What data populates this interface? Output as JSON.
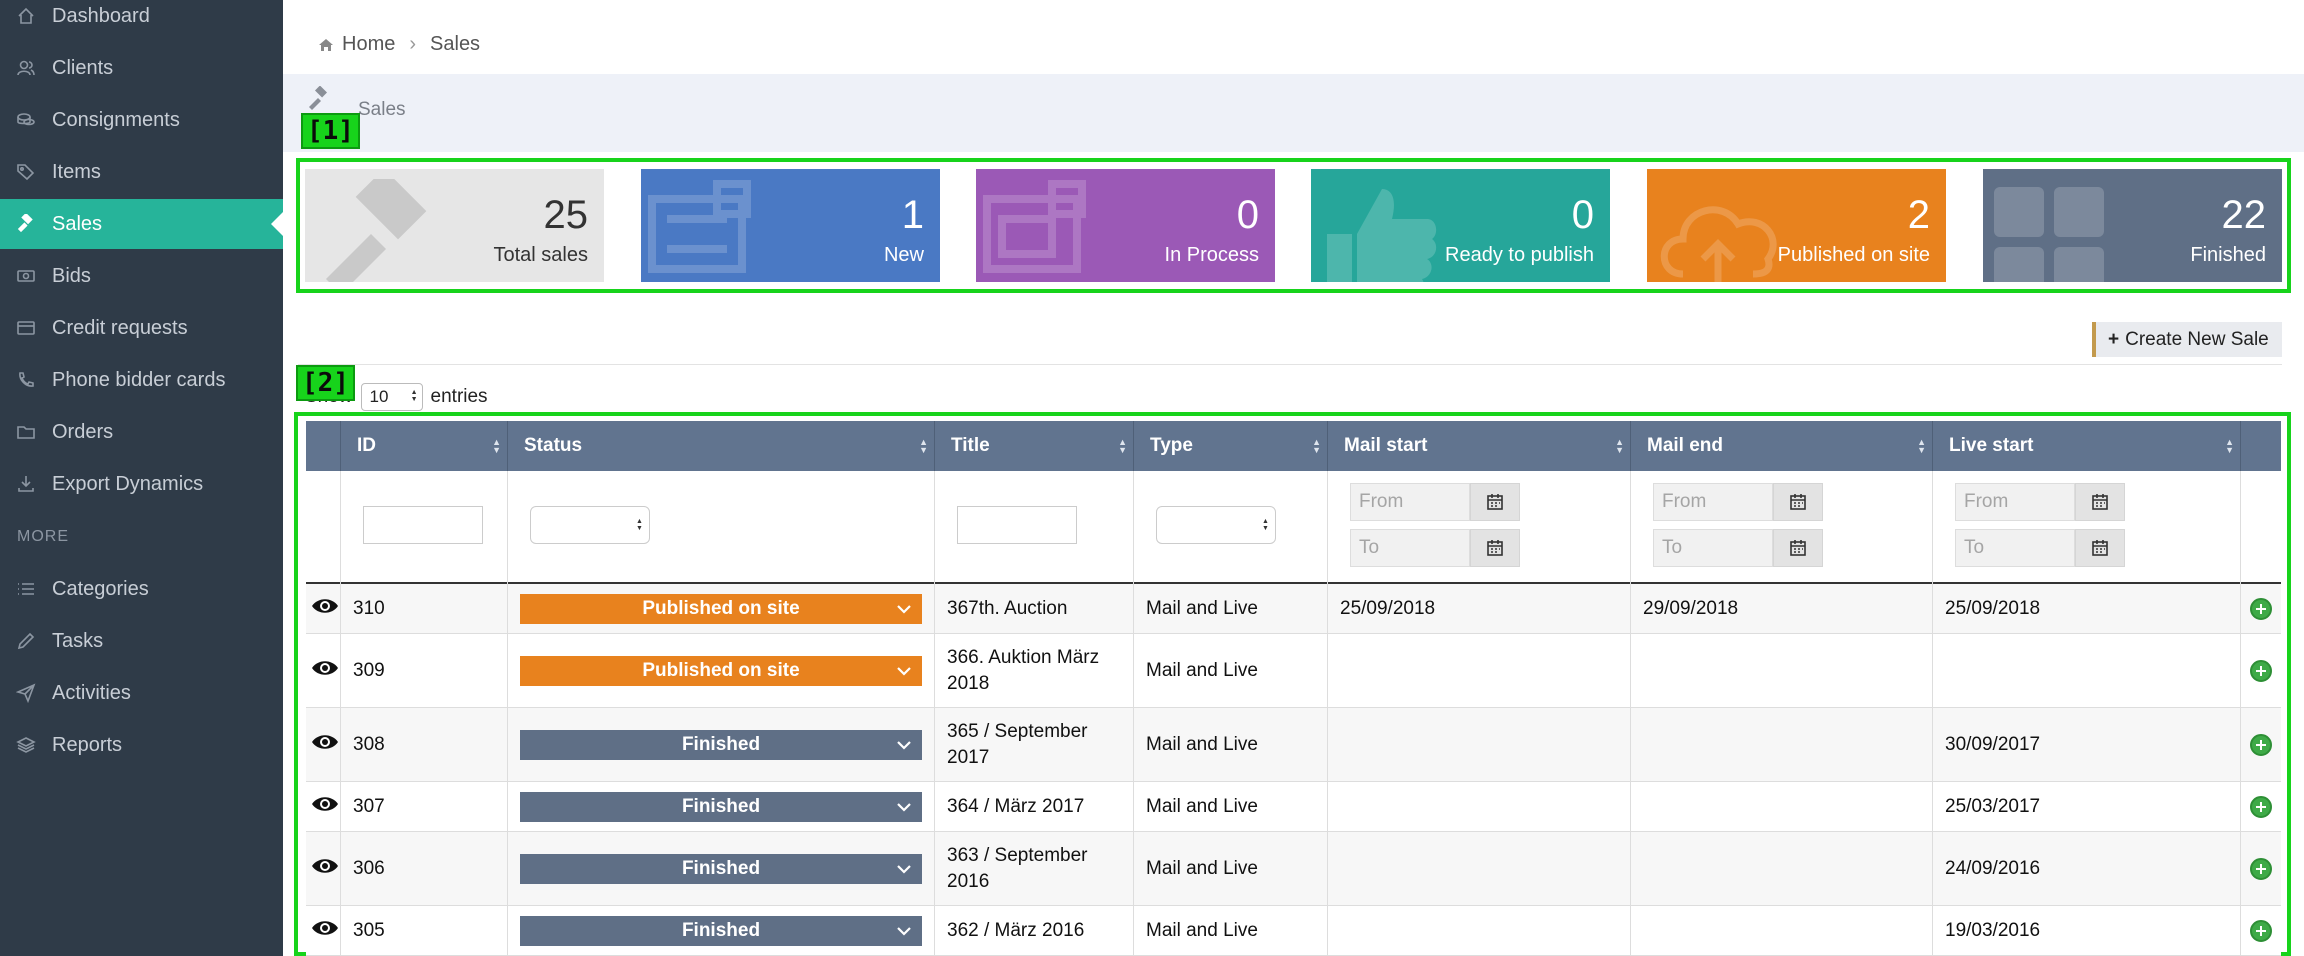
{
  "sidebar": {
    "items": [
      {
        "label": "Dashboard",
        "icon": "home-icon"
      },
      {
        "label": "Clients",
        "icon": "users-icon"
      },
      {
        "label": "Consignments",
        "icon": "coins-icon"
      },
      {
        "label": "Items",
        "icon": "tags-icon"
      },
      {
        "label": "Sales",
        "icon": "gavel-icon",
        "active": true
      },
      {
        "label": "Bids",
        "icon": "money-icon"
      },
      {
        "label": "Credit requests",
        "icon": "credit-card-icon"
      },
      {
        "label": "Phone bidder cards",
        "icon": "phone-icon"
      },
      {
        "label": "Orders",
        "icon": "folder-icon"
      },
      {
        "label": "Export Dynamics",
        "icon": "download-icon"
      }
    ],
    "section_label": "MORE",
    "more_items": [
      {
        "label": "Categories",
        "icon": "list-icon"
      },
      {
        "label": "Tasks",
        "icon": "pencil-icon"
      },
      {
        "label": "Activities",
        "icon": "paper-plane-icon"
      },
      {
        "label": "Reports",
        "icon": "layers-icon"
      }
    ]
  },
  "breadcrumb": {
    "home": "Home",
    "current": "Sales"
  },
  "page": {
    "title": "Sales"
  },
  "annotations": {
    "one": "[1]",
    "two": "[2]"
  },
  "stats": [
    {
      "value": "25",
      "label": "Total sales",
      "color": "#e6e6e6",
      "icon": "gavel-icon"
    },
    {
      "value": "1",
      "label": "New",
      "color": "#4a79c4",
      "icon": "sitemap-icon"
    },
    {
      "value": "0",
      "label": "In Process",
      "color": "#9b59b6",
      "icon": "sitemap-icon"
    },
    {
      "value": "0",
      "label": "Ready to publish",
      "color": "#26a69a",
      "icon": "thumbs-up-icon"
    },
    {
      "value": "2",
      "label": "Published on site",
      "color": "#e8821e",
      "icon": "cloud-upload-icon"
    },
    {
      "value": "22",
      "label": "Finished",
      "color": "#5f6f86",
      "icon": "grid-icon"
    }
  ],
  "create_button": "Create New Sale",
  "entries": {
    "show": "Show",
    "value": "10",
    "suffix": "entries"
  },
  "table": {
    "columns": [
      "ID",
      "Status",
      "Title",
      "Type",
      "Mail start",
      "Mail end",
      "Live start"
    ],
    "date_filter": {
      "from": "From",
      "to": "To"
    },
    "rows": [
      {
        "id": "310",
        "status": "Published on site",
        "status_color": "#e8821e",
        "title": "367th. Auction",
        "type": "Mail and Live",
        "mail_start": "25/09/2018",
        "mail_end": "29/09/2018",
        "live_start": "25/09/2018"
      },
      {
        "id": "309",
        "status": "Published on site",
        "status_color": "#e8821e",
        "title": "366. Auktion März 2018",
        "type": "Mail and Live",
        "mail_start": "",
        "mail_end": "",
        "live_start": ""
      },
      {
        "id": "308",
        "status": "Finished",
        "status_color": "#5f6f86",
        "title": "365 / September 2017",
        "type": "Mail and Live",
        "mail_start": "",
        "mail_end": "",
        "live_start": "30/09/2017"
      },
      {
        "id": "307",
        "status": "Finished",
        "status_color": "#5f6f86",
        "title": "364 / März 2017",
        "type": "Mail and Live",
        "mail_start": "",
        "mail_end": "",
        "live_start": "25/03/2017"
      },
      {
        "id": "306",
        "status": "Finished",
        "status_color": "#5f6f86",
        "title": "363 / September 2016",
        "type": "Mail and Live",
        "mail_start": "",
        "mail_end": "",
        "live_start": "24/09/2016"
      },
      {
        "id": "305",
        "status": "Finished",
        "status_color": "#5f6f86",
        "title": "362 / März 2016",
        "type": "Mail and Live",
        "mail_start": "",
        "mail_end": "",
        "live_start": "19/03/2016"
      }
    ]
  }
}
